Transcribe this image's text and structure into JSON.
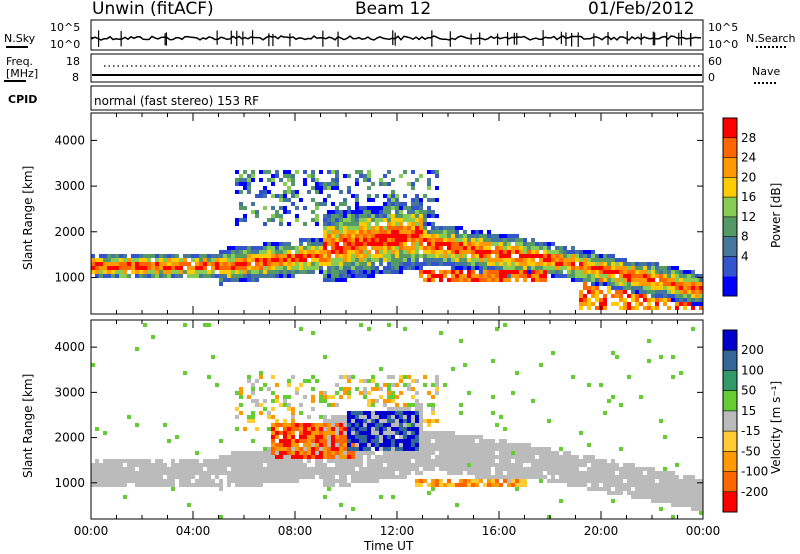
{
  "header": {
    "station": "Unwin (fitACF)",
    "beam": "Beam 12",
    "date": "01/Feb/2012"
  },
  "top_panels": {
    "nsky_label": "N.Sky",
    "nsky_ticks": [
      "10^5",
      "10^0"
    ],
    "nsearch_label": "N.Search",
    "nsearch_ticks": [
      "10^5",
      "10^0"
    ],
    "freq_label": "Freq.",
    "freq_unit": "[MHz]",
    "freq_ticks": [
      "18",
      "8"
    ],
    "nave_label": "Nave",
    "nave_ticks": [
      "60",
      "0"
    ],
    "cpid_label": "CPID",
    "cpid_text": "normal (fast stereo) 153 RF"
  },
  "colors": {
    "power": [
      "#0000ff",
      "#3355cc",
      "#447799",
      "#559966",
      "#88cc55",
      "#ffcc00",
      "#ff9900",
      "#ff6600",
      "#ff0000"
    ],
    "velocity": [
      "#0000cc",
      "#336699",
      "#339966",
      "#66cc33",
      "#bbbbbb",
      "#ffcc33",
      "#ff9900",
      "#ff6600",
      "#ff0000"
    ]
  },
  "chart_data": [
    {
      "type": "heatmap",
      "ylabel": "Slant Range [km]",
      "xlabel": "Time UT",
      "x_ticks": [
        "00:00",
        "04:00",
        "08:00",
        "12:00",
        "16:00",
        "20:00",
        "00:00"
      ],
      "xlim_hours": [
        0,
        24
      ],
      "y_ticks": [
        1000,
        2000,
        3000,
        4000
      ],
      "ylim": [
        200,
        4600
      ],
      "colorbar": {
        "label": "Power [dB]",
        "ticks": [
          "28",
          "24",
          "20",
          "16",
          "12",
          "8",
          "4"
        ]
      },
      "regions": [
        {
          "x": [
            0,
            5
          ],
          "y": [
            1000,
            1450
          ],
          "level": "mid"
        },
        {
          "x": [
            5,
            9
          ],
          "y": [
            900,
            1700
          ],
          "level": "high"
        },
        {
          "x": [
            9,
            13.5
          ],
          "y": [
            1200,
            2800
          ],
          "level": "high"
        },
        {
          "x": [
            13,
            17.5
          ],
          "y": [
            850,
            1150
          ],
          "level": "high"
        },
        {
          "x": [
            15.5,
            24
          ],
          "y": [
            500,
            2000
          ],
          "level": "mid"
        },
        {
          "x": [
            6,
            13
          ],
          "y": [
            2200,
            3300
          ],
          "level": "low"
        }
      ]
    },
    {
      "type": "heatmap",
      "ylabel": "Slant Range [km]",
      "xlabel": "Time UT",
      "x_ticks": [
        "00:00",
        "04:00",
        "08:00",
        "12:00",
        "16:00",
        "20:00",
        "00:00"
      ],
      "xlim_hours": [
        0,
        24
      ],
      "y_ticks": [
        1000,
        2000,
        3000,
        4000
      ],
      "ylim": [
        200,
        4600
      ],
      "colorbar": {
        "label": "Velocity [m s⁻¹]",
        "ticks": [
          "200",
          "100",
          "50",
          "15",
          "-15",
          "-50",
          "-100",
          "-200"
        ]
      },
      "regions": [
        {
          "x": [
            0,
            24
          ],
          "y": [
            900,
            1500
          ],
          "value": "ground scatter -15..15"
        },
        {
          "x": [
            7,
            10
          ],
          "y": [
            1600,
            2200
          ],
          "value": "-100..-200"
        },
        {
          "x": [
            10,
            13
          ],
          "y": [
            1800,
            2400
          ],
          "value": "100..200"
        },
        {
          "x": [
            12.5,
            17
          ],
          "y": [
            850,
            1050
          ],
          "value": "-50..-100"
        }
      ]
    }
  ],
  "xlabel": "Time UT"
}
